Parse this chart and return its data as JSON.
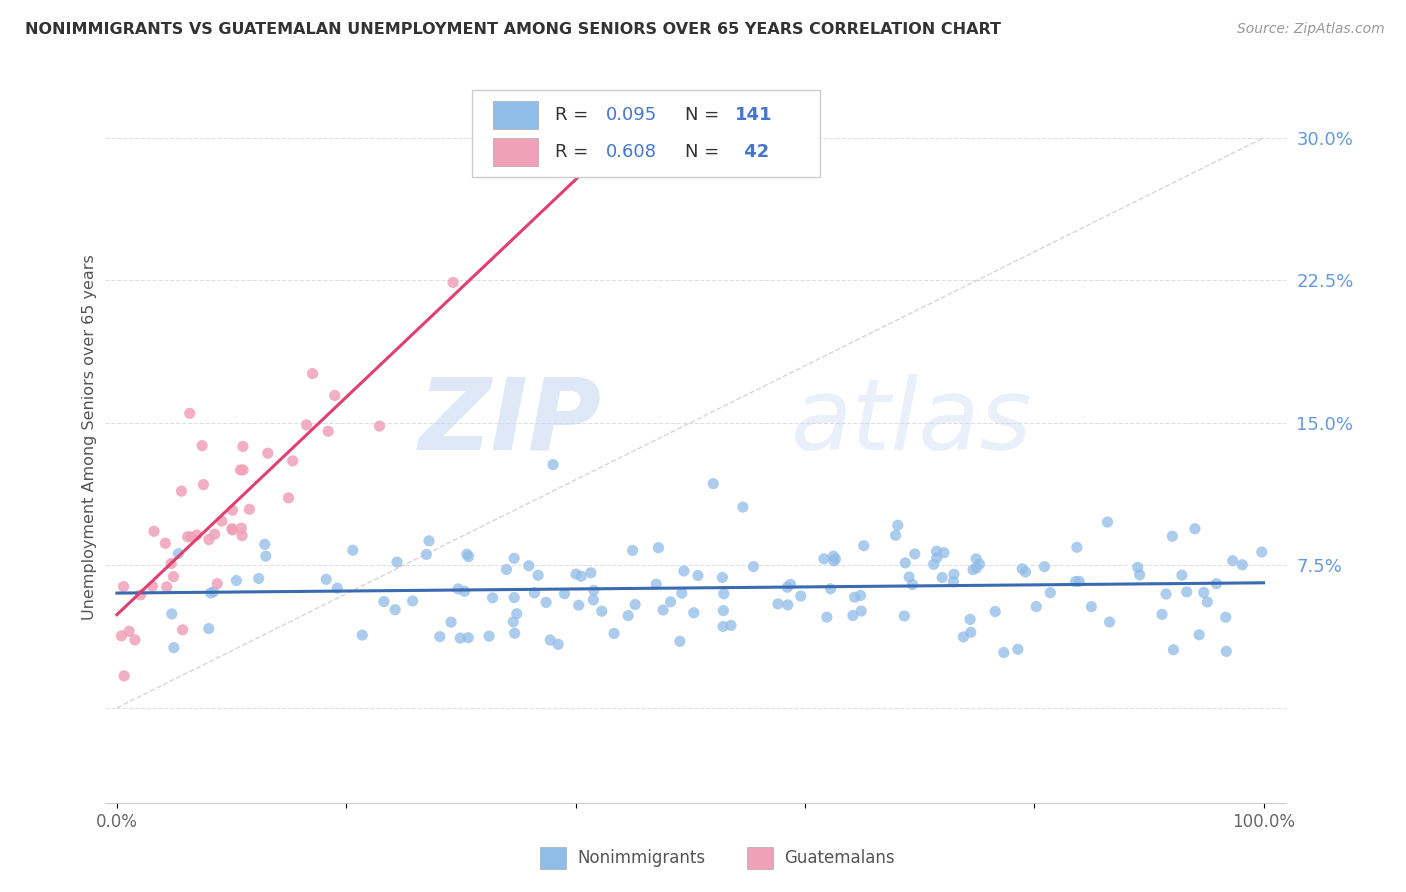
{
  "title": "NONIMMIGRANTS VS GUATEMALAN UNEMPLOYMENT AMONG SENIORS OVER 65 YEARS CORRELATION CHART",
  "source": "Source: ZipAtlas.com",
  "ylabel": "Unemployment Among Seniors over 65 years",
  "xlim": [
    -0.01,
    1.02
  ],
  "ylim": [
    -0.05,
    0.335
  ],
  "blue_color": "#90bce8",
  "pink_color": "#f0a0b8",
  "blue_line_color": "#3a6ab0",
  "pink_line_color": "#e04070",
  "diag_line_color": "#cccccc",
  "watermark_zip": "ZIP",
  "watermark_atlas": "atlas",
  "legend_label_blue": "Nonimmigrants",
  "legend_label_pink": "Guatemalans",
  "ytick_positions": [
    0.0,
    0.075,
    0.15,
    0.225,
    0.3
  ],
  "ytick_labels": [
    "",
    "7.5%",
    "15.0%",
    "22.5%",
    "30.0%"
  ],
  "xtick_positions": [
    0.0,
    0.2,
    0.4,
    0.6,
    0.8,
    1.0
  ],
  "xtick_labels": [
    "0.0%",
    "",
    "",
    "",
    "",
    "100.0%"
  ],
  "blue_R": "0.095",
  "blue_N": "141",
  "pink_R": "0.608",
  "pink_N": "42"
}
